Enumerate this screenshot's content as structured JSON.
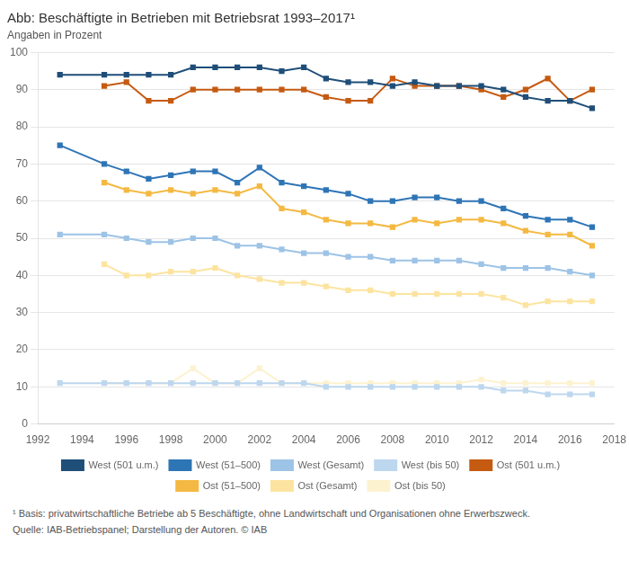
{
  "chart_data": {
    "type": "line",
    "title": "Abb: Beschäftigte in Betrieben mit Betriebsrat 1993–2017¹",
    "subtitle": "Angaben in Prozent",
    "annotations": [
      "¹ Basis: privatwirtschaftliche Betriebe ab 5 Beschäftigte, ohne Landwirtschaft und Organisationen ohne Erwerbszweck.",
      "Quelle: IAB-Betriebspanel; Darstellung der Autoren. © IAB"
    ],
    "x": [
      1993,
      1995,
      1996,
      1997,
      1998,
      1999,
      2000,
      2001,
      2002,
      2003,
      2004,
      2005,
      2006,
      2007,
      2008,
      2009,
      2010,
      2011,
      2012,
      2013,
      2014,
      2015,
      2016,
      2017
    ],
    "series": [
      {
        "name": "West (501 u.m.)",
        "color": "#1f4e79",
        "values": [
          94,
          94,
          94,
          94,
          94,
          96,
          96,
          96,
          96,
          95,
          96,
          93,
          92,
          92,
          91,
          92,
          91,
          91,
          91,
          90,
          88,
          87,
          87,
          85
        ]
      },
      {
        "name": "West (51–500)",
        "color": "#2e75b6",
        "values": [
          75,
          70,
          68,
          66,
          67,
          68,
          68,
          65,
          69,
          65,
          64,
          63,
          62,
          60,
          60,
          61,
          61,
          60,
          60,
          58,
          56,
          55,
          55,
          53
        ]
      },
      {
        "name": "West (Gesamt)",
        "color": "#9dc3e6",
        "values": [
          51,
          51,
          50,
          49,
          49,
          50,
          50,
          48,
          48,
          47,
          46,
          46,
          45,
          45,
          44,
          44,
          44,
          44,
          43,
          42,
          42,
          42,
          41,
          40
        ]
      },
      {
        "name": "West (bis 50)",
        "color": "#bdd7ee",
        "values": [
          11,
          11,
          11,
          11,
          11,
          11,
          11,
          11,
          11,
          11,
          11,
          10,
          10,
          10,
          10,
          10,
          10,
          10,
          10,
          9,
          9,
          8,
          8,
          8
        ]
      },
      {
        "name": "Ost (501 u.m.)",
        "color": "#c55a11",
        "values": [
          null,
          91,
          92,
          87,
          87,
          90,
          90,
          90,
          90,
          90,
          90,
          88,
          87,
          87,
          93,
          91,
          91,
          91,
          90,
          88,
          90,
          93,
          87,
          90
        ]
      },
      {
        "name": "Ost (51–500)",
        "color": "#f4b942",
        "values": [
          null,
          65,
          63,
          62,
          63,
          62,
          63,
          62,
          64,
          58,
          57,
          55,
          54,
          54,
          53,
          55,
          54,
          55,
          55,
          54,
          52,
          51,
          51,
          48
        ]
      },
      {
        "name": "Ost (Gesamt)",
        "color": "#fce4a0",
        "values": [
          null,
          43,
          40,
          40,
          41,
          41,
          42,
          40,
          39,
          38,
          38,
          37,
          36,
          36,
          35,
          35,
          35,
          35,
          35,
          34,
          32,
          33,
          33,
          33
        ]
      },
      {
        "name": "Ost (bis 50)",
        "color": "#fdf2d0",
        "values": [
          null,
          11,
          11,
          11,
          11,
          15,
          11,
          11,
          15,
          11,
          11,
          11,
          11,
          11,
          11,
          11,
          11,
          11,
          12,
          11,
          11,
          11,
          11,
          11
        ]
      }
    ],
    "marker": "square",
    "xlim": [
      1992,
      2018
    ],
    "xticks": [
      1992,
      1994,
      1996,
      1998,
      2000,
      2002,
      2004,
      2006,
      2008,
      2010,
      2012,
      2014,
      2016,
      2018
    ],
    "ylim": [
      0,
      100
    ],
    "yticks": [
      0,
      10,
      20,
      30,
      40,
      50,
      60,
      70,
      80,
      90,
      100
    ],
    "grid": "y",
    "legend": "bottom"
  }
}
